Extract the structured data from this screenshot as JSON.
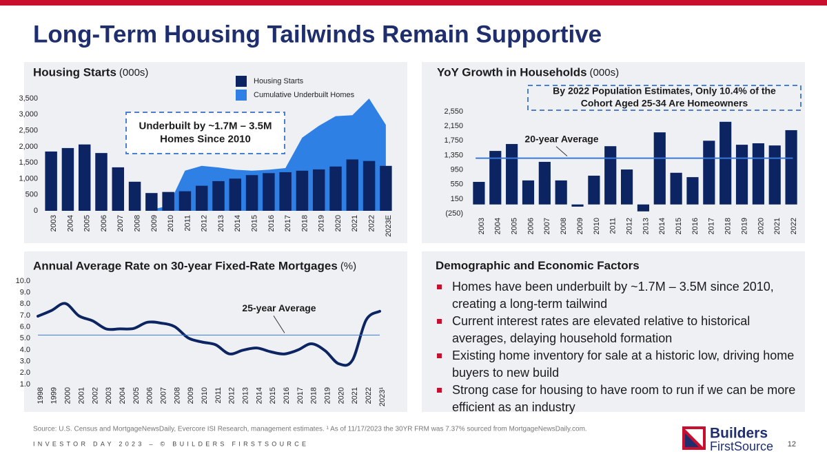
{
  "title": "Long-Term Housing Tailwinds Remain Supportive",
  "chart_data": [
    {
      "type": "bar",
      "title": "Housing Starts",
      "unit": "(000s)",
      "categories": [
        "2003",
        "2004",
        "2005",
        "2006",
        "2007",
        "2008",
        "2009",
        "2010",
        "2011",
        "2012",
        "2013",
        "2014",
        "2015",
        "2016",
        "2017",
        "2018",
        "2019",
        "2020",
        "2021",
        "2022",
        "2023E"
      ],
      "series": [
        {
          "name": "Housing Starts",
          "type": "bar",
          "color": "#0c2461",
          "values": [
            1848,
            1956,
            2068,
            1801,
            1355,
            906,
            554,
            587,
            609,
            781,
            925,
            1003,
            1112,
            1174,
            1203,
            1250,
            1290,
            1380,
            1601,
            1553,
            1400
          ]
        },
        {
          "name": "Cumulative Underbuilt Homes",
          "type": "area",
          "color": "#2f80e4",
          "values": [
            null,
            null,
            null,
            null,
            null,
            null,
            40,
            150,
            1250,
            1400,
            1350,
            1280,
            1250,
            1280,
            1330,
            2280,
            2650,
            2950,
            2980,
            3500,
            2680
          ]
        }
      ],
      "ylim": [
        0,
        3500
      ],
      "yticks": [
        0,
        500,
        {
          "value": 1000,
          "label": "1,000"
        },
        {
          "value": 1500,
          "label": "1,500"
        },
        {
          "value": 2000,
          "label": "2,000"
        },
        {
          "value": 2500,
          "label": "2,500"
        },
        {
          "value": 3000,
          "label": "3,000"
        },
        {
          "value": 3500,
          "label": "3,500"
        }
      ],
      "grid": false,
      "annotation": [
        "Underbuilt by ~1.7M – 3.5M",
        "Homes Since 2010"
      ]
    },
    {
      "type": "bar",
      "title": "YoY Growth in Households",
      "unit": "(000s)",
      "categories": [
        "2003",
        "2004",
        "2005",
        "2006",
        "2007",
        "2008",
        "2009",
        "2010",
        "2011",
        "2012",
        "2013",
        "2014",
        "2015",
        "2016",
        "2017",
        "2018",
        "2019",
        "2020",
        "2021",
        "2022"
      ],
      "values": [
        620,
        1470,
        1660,
        660,
        1170,
        660,
        -60,
        790,
        1600,
        960,
        -190,
        1980,
        870,
        750,
        1750,
        2270,
        1640,
        1680,
        1620,
        2040
      ],
      "color": "#0c2461",
      "ylim": [
        -250,
        2550
      ],
      "yticks": [
        {
          "value": -250,
          "label": "(250)"
        },
        150,
        550,
        950,
        {
          "value": 1350,
          "label": "1,350"
        },
        {
          "value": 1750,
          "label": "1,750"
        },
        {
          "value": 2150,
          "label": "2,150"
        },
        {
          "value": 2550,
          "label": "2,550"
        }
      ],
      "grid": false,
      "reference_line": {
        "value": 1270,
        "label": "20-year Average",
        "color": "#3a78d8"
      },
      "annotation": [
        "By 2022 Population Estimates, Only 10.4% of the",
        "Cohort Aged 25-34 Are Homeowners"
      ]
    },
    {
      "type": "line",
      "title": "Annual Average Rate on 30-year Fixed-Rate Mortgages",
      "unit": "(%)",
      "categories": [
        "1998",
        "1999",
        "2000",
        "2001",
        "2002",
        "2003",
        "2004",
        "2005",
        "2006",
        "2007",
        "2008",
        "2009",
        "2010",
        "2011",
        "2012",
        "2013",
        "2014",
        "2015",
        "2016",
        "2017",
        "2018",
        "2019",
        "2020",
        "2021",
        "2022",
        "2023¹"
      ],
      "values": [
        6.94,
        7.44,
        8.05,
        6.97,
        6.54,
        5.83,
        5.84,
        5.87,
        6.41,
        6.34,
        6.03,
        5.04,
        4.69,
        4.45,
        3.66,
        3.98,
        4.17,
        3.85,
        3.65,
        3.99,
        4.54,
        3.94,
        2.8,
        3.1,
        6.6,
        7.37
      ],
      "color": "#0c2461",
      "ylim": [
        1,
        10
      ],
      "yticks": [
        {
          "value": 1,
          "label": "1.0"
        },
        {
          "value": 2,
          "label": "2.0"
        },
        {
          "value": 3,
          "label": "3.0"
        },
        {
          "value": 4,
          "label": "4.0"
        },
        {
          "value": 5,
          "label": "5.0"
        },
        {
          "value": 6,
          "label": "6.0"
        },
        {
          "value": 7,
          "label": "7.0"
        },
        {
          "value": 8,
          "label": "8.0"
        },
        {
          "value": 9,
          "label": "9.0"
        },
        {
          "value": 10,
          "label": "10.0"
        }
      ],
      "grid": false,
      "reference_line": {
        "value": 5.3,
        "label": "25-year Average",
        "color": "#3a78d8"
      }
    }
  ],
  "factors": {
    "title": "Demographic and Economic Factors",
    "bullets": [
      "Homes have been underbuilt by ~1.7M – 3.5M since 2010, creating a long-term tailwind",
      "Current interest rates are elevated relative to historical averages, delaying household formation",
      "Existing home inventory for sale at a historic low, driving home buyers to new build",
      "Strong case for housing to have room to run if we can be more efficient as an industry"
    ]
  },
  "footer": {
    "source": "Source: U.S. Census and MortgageNewsDaily, Evercore ISI Research, management estimates. ¹ As of 11/17/2023 the 30YR FRM was 7.37% sourced from MortgageNewsDaily.com.",
    "event": "INVESTOR DAY 2023 – © BUILDERS FIRSTSOURCE",
    "page": "12",
    "logo": [
      "Builders",
      "FirstSource"
    ]
  }
}
